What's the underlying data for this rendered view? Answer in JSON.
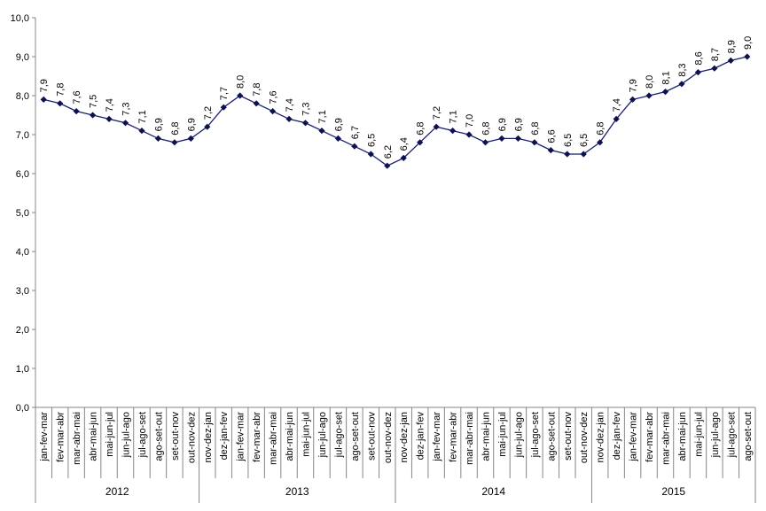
{
  "chart_data": {
    "type": "line",
    "title": "",
    "xlabel": "",
    "ylabel": "",
    "ylim": [
      0,
      10
    ],
    "yticks": [
      "0,0",
      "1,0",
      "2,0",
      "3,0",
      "4,0",
      "5,0",
      "6,0",
      "7,0",
      "8,0",
      "9,0",
      "10,0"
    ],
    "grid": false,
    "legend": "none",
    "colors": {
      "line": "#1a1f6e",
      "marker": "#0d1150",
      "axis": "#868686"
    },
    "marker": "diamond",
    "categories": [
      "jan-fev-mar",
      "fev-mar-abr",
      "mar-abr-mai",
      "abr-mai-jun",
      "mai-jun-jul",
      "jun-jul-ago",
      "jul-ago-set",
      "ago-set-out",
      "set-out-nov",
      "out-nov-dez",
      "nov-dez-jan",
      "dez-jan-fev",
      "jan-fev-mar",
      "fev-mar-abr",
      "mar-abr-mai",
      "abr-mai-jun",
      "mai-jun-jul",
      "jun-jul-ago",
      "jul-ago-set",
      "ago-set-out",
      "set-out-nov",
      "out-nov-dez",
      "nov-dez-jan",
      "dez-jan-fev",
      "jan-fev-mar",
      "fev-mar-abr",
      "mar-abr-mai",
      "abr-mai-jun",
      "mai-jun-jul",
      "jun-jul-ago",
      "jul-ago-set",
      "ago-set-out",
      "set-out-nov",
      "out-nov-dez",
      "nov-dez-jan",
      "dez-jan-fev",
      "jan-fev-mar",
      "fev-mar-abr",
      "mar-abr-mai",
      "abr-mai-jun",
      "mai-jun-jul",
      "jun-jul-ago",
      "jul-ago-set",
      "ago-set-out"
    ],
    "values": [
      7.9,
      7.8,
      7.6,
      7.5,
      7.4,
      7.3,
      7.1,
      6.9,
      6.8,
      6.9,
      7.2,
      7.7,
      8.0,
      7.8,
      7.6,
      7.4,
      7.3,
      7.1,
      6.9,
      6.7,
      6.5,
      6.2,
      6.4,
      6.8,
      7.2,
      7.1,
      7.0,
      6.8,
      6.9,
      6.9,
      6.8,
      6.6,
      6.5,
      6.5,
      6.8,
      7.4,
      7.9,
      8.0,
      8.1,
      8.3,
      8.6,
      8.7,
      8.9,
      9.0
    ],
    "data_labels": [
      "7,9",
      "7,8",
      "7,6",
      "7,5",
      "7,4",
      "7,3",
      "7,1",
      "6,9",
      "6,8",
      "6,9",
      "7,2",
      "7,7",
      "8,0",
      "7,8",
      "7,6",
      "7,4",
      "7,3",
      "7,1",
      "6,9",
      "6,7",
      "6,5",
      "6,2",
      "6,4",
      "6,8",
      "7,2",
      "7,1",
      "7,0",
      "6,8",
      "6,9",
      "6,9",
      "6,8",
      "6,6",
      "6,5",
      "6,5",
      "6,8",
      "7,4",
      "7,9",
      "8,0",
      "8,1",
      "8,3",
      "8,6",
      "8,7",
      "8,9",
      "9,0"
    ],
    "groups": [
      {
        "label": "2012",
        "count": 10
      },
      {
        "label": "2013",
        "count": 12
      },
      {
        "label": "2014",
        "count": 12
      },
      {
        "label": "2015",
        "count": 10
      }
    ]
  }
}
